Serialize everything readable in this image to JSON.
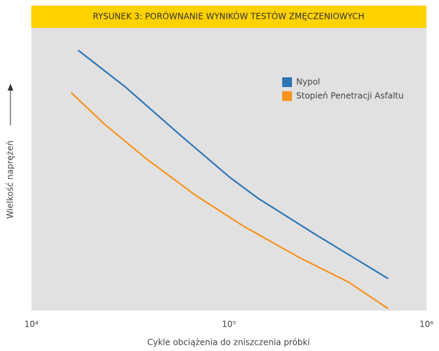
{
  "chart_data": {
    "type": "line",
    "title": "RYSUNEK 3: PORÓWNANIE WYNIKÓW TESTÓW ZMĘCZENIOWYCH",
    "xlabel": "Cykle obciążenia do zniszczenia próbki",
    "ylabel": "Wielkość naprężeń",
    "xscale": "log",
    "xlim": [
      10000,
      1000000
    ],
    "xticks": [
      {
        "value": 10000,
        "label": "10⁴"
      },
      {
        "value": 100000,
        "label": "10⁵"
      },
      {
        "value": 1000000,
        "label": "10⁶"
      }
    ],
    "ylim": [
      0,
      100
    ],
    "legend": "top-right",
    "series": [
      {
        "name": "Nypol",
        "color": "#2e75b6",
        "x": [
          17240,
          29900,
          57300,
          101600,
          140600,
          269000,
          640000
        ],
        "values": [
          92.1,
          79.1,
          61.8,
          47.0,
          39.7,
          27.3,
          11.3
        ]
      },
      {
        "name": "Stopień Penetracji Asfaltu",
        "color": "#f7931e",
        "x": [
          15900,
          23400,
          38200,
          67400,
          119000,
          228000,
          403000,
          640000
        ],
        "values": [
          77.1,
          66.0,
          53.7,
          40.9,
          29.8,
          18.7,
          10.1,
          0.7
        ]
      }
    ]
  }
}
